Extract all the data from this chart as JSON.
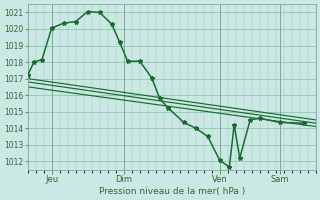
{
  "xlabel": "Pression niveau de la mer( hPa )",
  "bg_color": "#cce8e4",
  "grid_color": "#99ccbb",
  "line_color": "#1a6b30",
  "ylim": [
    1011.5,
    1021.5
  ],
  "yticks": [
    1012,
    1013,
    1014,
    1015,
    1016,
    1017,
    1018,
    1019,
    1020,
    1021
  ],
  "xlim": [
    0,
    360
  ],
  "xtick_positions": [
    30,
    120,
    240,
    315
  ],
  "xtick_labels": [
    "Jeu",
    "Dim",
    "Ven",
    "Sam"
  ],
  "vline_positions": [
    30,
    120,
    240,
    315
  ],
  "main_line_x": [
    0,
    8,
    18,
    30,
    45,
    60,
    75,
    90,
    105,
    115,
    125,
    140,
    155,
    165,
    175,
    195,
    210,
    225,
    240,
    252,
    258,
    265,
    278,
    290,
    315,
    345
  ],
  "main_line_y": [
    1017.2,
    1018.0,
    1018.15,
    1020.05,
    1020.35,
    1020.45,
    1021.05,
    1021.0,
    1020.3,
    1019.2,
    1018.05,
    1018.05,
    1017.05,
    1015.8,
    1015.25,
    1014.35,
    1014.0,
    1013.5,
    1012.05,
    1011.65,
    1014.2,
    1012.2,
    1014.5,
    1014.6,
    1014.35,
    1014.3
  ],
  "ref_lines": [
    {
      "x": [
        0,
        360
      ],
      "y": [
        1017.0,
        1014.5
      ]
    },
    {
      "x": [
        0,
        360
      ],
      "y": [
        1016.8,
        1014.3
      ]
    },
    {
      "x": [
        0,
        360
      ],
      "y": [
        1016.5,
        1014.1
      ]
    }
  ]
}
